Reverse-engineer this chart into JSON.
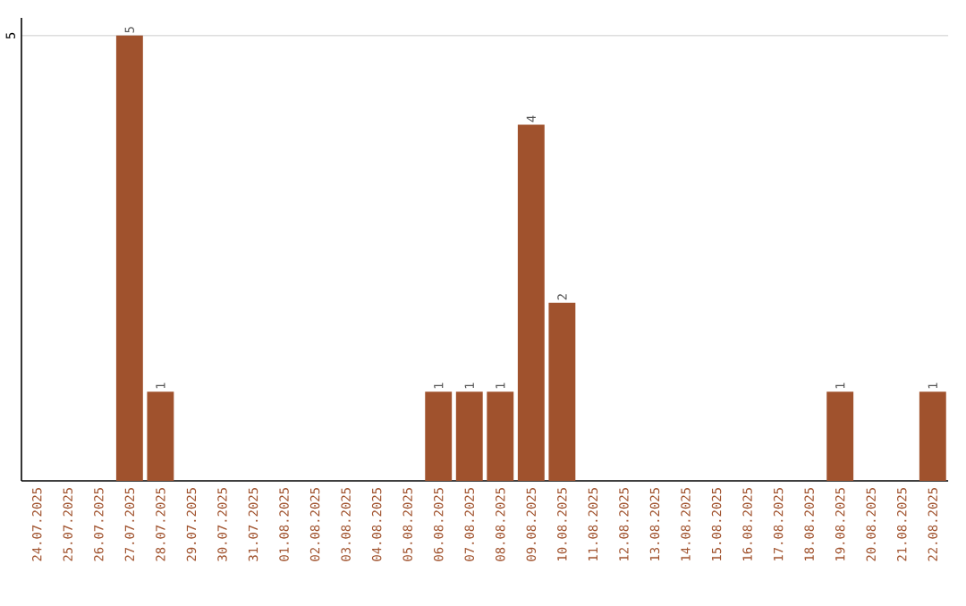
{
  "chart_data": {
    "type": "bar",
    "categories": [
      "24.07.2025",
      "25.07.2025",
      "26.07.2025",
      "27.07.2025",
      "28.07.2025",
      "29.07.2025",
      "30.07.2025",
      "31.07.2025",
      "01.08.2025",
      "02.08.2025",
      "03.08.2025",
      "04.08.2025",
      "05.08.2025",
      "06.08.2025",
      "07.08.2025",
      "08.08.2025",
      "09.08.2025",
      "10.08.2025",
      "11.08.2025",
      "12.08.2025",
      "13.08.2025",
      "14.08.2025",
      "15.08.2025",
      "16.08.2025",
      "17.08.2025",
      "18.08.2025",
      "19.08.2025",
      "20.08.2025",
      "21.08.2025",
      "22.08.2025"
    ],
    "values": [
      0,
      0,
      0,
      5,
      1,
      0,
      0,
      0,
      0,
      0,
      0,
      0,
      0,
      1,
      1,
      1,
      4,
      2,
      0,
      0,
      0,
      0,
      0,
      0,
      0,
      0,
      1,
      0,
      0,
      1
    ],
    "value_labels": [
      null,
      null,
      null,
      "5",
      "1",
      null,
      null,
      null,
      null,
      null,
      null,
      null,
      null,
      "1",
      "1",
      "1",
      "4",
      "2",
      null,
      null,
      null,
      null,
      null,
      null,
      null,
      null,
      "1",
      null,
      null,
      "1"
    ],
    "color": "#a0522d",
    "ylim": [
      0,
      5.2
    ],
    "yticks": [
      5
    ],
    "grid": "y"
  }
}
